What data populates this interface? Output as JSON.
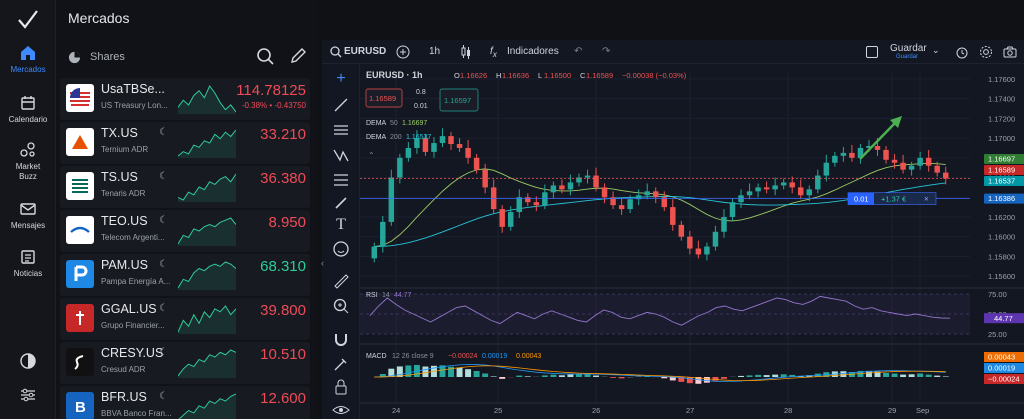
{
  "nav": {
    "items": [
      {
        "label": "Mercados",
        "icon": "home-icon",
        "active": true
      },
      {
        "label": "Calendario",
        "icon": "calendar-icon",
        "active": false
      },
      {
        "label": "Market Buzz",
        "icon": "buzz-icon",
        "active": false
      },
      {
        "label": "Mensajes",
        "icon": "mail-icon",
        "active": false
      },
      {
        "label": "Noticias",
        "icon": "news-icon",
        "active": false
      }
    ]
  },
  "markets": {
    "title": "Mercados",
    "category": "Shares",
    "rows": [
      {
        "symbol": "UsaTBSe...",
        "desc": "US Treasury Lon...",
        "price": "114.78125",
        "change": "-0.38%  •  -0.43750",
        "price_color": "red",
        "logo": "us-flag",
        "moon": false,
        "spark": [
          5,
          8,
          6,
          10,
          12,
          9,
          14,
          11,
          7,
          4,
          6,
          3
        ]
      },
      {
        "symbol": "TX.US",
        "desc": "Ternium ADR",
        "price": "33.210",
        "change": "",
        "price_color": "red",
        "logo": "ternium",
        "moon": true,
        "spark": [
          4,
          6,
          5,
          9,
          8,
          11,
          10,
          14,
          12,
          15,
          13,
          16
        ]
      },
      {
        "symbol": "TS.US",
        "desc": "Tenaris ADR",
        "price": "36.380",
        "change": "",
        "price_color": "red",
        "logo": "tenaris",
        "moon": true,
        "spark": [
          6,
          5,
          8,
          7,
          10,
          9,
          12,
          11,
          13,
          14,
          12,
          15
        ]
      },
      {
        "symbol": "TEO.US",
        "desc": "Telecom Argenti...",
        "price": "8.950",
        "change": "",
        "price_color": "red",
        "logo": "telecom",
        "moon": true,
        "spark": [
          4,
          8,
          7,
          11,
          10,
          12,
          13,
          12,
          14,
          15,
          16,
          13
        ]
      },
      {
        "symbol": "PAM.US",
        "desc": "Pampa Energía A...",
        "price": "68.310",
        "change": "",
        "price_color": "green",
        "logo": "pampa",
        "moon": true,
        "spark": [
          3,
          7,
          6,
          10,
          12,
          11,
          13,
          14,
          13,
          15,
          14,
          12
        ]
      },
      {
        "symbol": "GGAL.US",
        "desc": "Grupo Financier...",
        "price": "39.800",
        "change": "",
        "price_color": "red",
        "logo": "galicia",
        "moon": true,
        "spark": [
          5,
          9,
          7,
          11,
          8,
          12,
          10,
          13,
          12,
          14,
          11,
          13
        ]
      },
      {
        "symbol": "CRESY.US",
        "desc": "Cresud ADR",
        "price": "10.510",
        "change": "",
        "price_color": "red",
        "logo": "cresud",
        "moon": true,
        "spark": [
          4,
          7,
          9,
          8,
          11,
          10,
          13,
          12,
          14,
          13,
          15,
          14
        ]
      },
      {
        "symbol": "BFR.US",
        "desc": "BBVA Banco Fran...",
        "price": "12.600",
        "change": "",
        "price_color": "red",
        "logo": "bbva",
        "moon": true,
        "spark": [
          4,
          6,
          8,
          7,
          10,
          9,
          12,
          11,
          13,
          12,
          14,
          15
        ]
      }
    ]
  },
  "toolbar": {
    "symbol": "EURUSD",
    "interval": "1h",
    "indicators": "Indicadores",
    "save_label": "Guardar",
    "save_sub": "Guardar"
  },
  "chart_data": {
    "type": "candlestick",
    "title": "EURUSD · 1h",
    "ohlc": {
      "O": "1.16626",
      "H": "1.16636",
      "L": "1.16500",
      "C": "1.16589",
      "chg": "−0.00038 (−0.03%)"
    },
    "sell_price": "1.16589",
    "buy_price": "1.16597",
    "spread": "0.8",
    "qty": "0.01",
    "indicators": [
      {
        "name": "DEMA",
        "period": "50",
        "value": "1.16697",
        "color": "#9ccc65"
      },
      {
        "name": "DEMA",
        "period": "200",
        "value": "1.16537",
        "color": "#26c6da"
      }
    ],
    "ylim": [
      1.155,
      1.1765
    ],
    "price_ticks": [
      "1.17600",
      "1.17400",
      "1.17200",
      "1.17000",
      "1.16800",
      "1.16600",
      "1.16400",
      "1.16200",
      "1.16000",
      "1.15800",
      "1.15600"
    ],
    "price_badges": [
      {
        "label": "1.16697",
        "bg": "#2e7d32"
      },
      {
        "label": "1.16589",
        "bg": "#c62828"
      },
      {
        "label": "1.16537",
        "bg": "#0097a7"
      },
      {
        "label": "1.16386",
        "bg": "#1565c0"
      }
    ],
    "position": {
      "qty": "0.01",
      "pnl": "+1.37 €",
      "level": 1.16386
    },
    "x_ticks": [
      "24",
      "25",
      "26",
      "27",
      "28",
      "29",
      "Sep"
    ],
    "candles_close": [
      1.159,
      1.1615,
      1.166,
      1.168,
      1.169,
      1.17,
      1.1686,
      1.1695,
      1.1702,
      1.1694,
      1.169,
      1.168,
      1.1668,
      1.165,
      1.1628,
      1.161,
      1.1625,
      1.164,
      1.1635,
      1.1632,
      1.1645,
      1.1652,
      1.1648,
      1.1655,
      1.166,
      1.1662,
      1.165,
      1.164,
      1.1632,
      1.1628,
      1.1638,
      1.1642,
      1.1646,
      1.164,
      1.163,
      1.1612,
      1.16,
      1.1588,
      1.1582,
      1.159,
      1.1605,
      1.162,
      1.1635,
      1.1642,
      1.1646,
      1.165,
      1.1648,
      1.1652,
      1.1655,
      1.165,
      1.1642,
      1.1648,
      1.1662,
      1.1675,
      1.1682,
      1.1685,
      1.168,
      1.169,
      1.1692,
      1.1688,
      1.1678,
      1.1675,
      1.1668,
      1.1672,
      1.168,
      1.1672,
      1.1665,
      1.1659
    ],
    "rsi": {
      "label": "RSI",
      "period": "14",
      "value": "44.77",
      "ticks": [
        "75.00",
        "50.00",
        "25.00"
      ],
      "values": [
        48,
        60,
        70,
        62,
        55,
        50,
        45,
        40,
        46,
        52,
        58,
        60,
        54,
        48,
        42,
        38,
        45,
        52,
        48,
        44,
        50,
        54,
        50,
        46,
        42,
        40,
        48,
        55,
        52,
        46,
        44,
        48,
        52,
        50,
        46,
        40,
        36,
        42,
        48,
        52,
        58,
        60,
        56,
        54,
        58,
        62,
        66,
        70,
        68,
        64,
        62,
        66,
        72,
        70,
        68,
        66,
        60,
        56,
        58,
        54,
        52,
        50,
        48,
        50,
        48,
        46,
        45,
        44.77
      ]
    },
    "macd": {
      "label": "MACD",
      "params": "12  26  close  9",
      "values": [
        "−0.00024",
        "0.00019",
        "0.00043"
      ],
      "badges": [
        {
          "label": "0.00043",
          "bg": "#ef6c00"
        },
        {
          "label": "0.00019",
          "bg": "#1e88e5"
        },
        {
          "label": "−0.00024",
          "bg": "#c62828"
        }
      ]
    }
  }
}
